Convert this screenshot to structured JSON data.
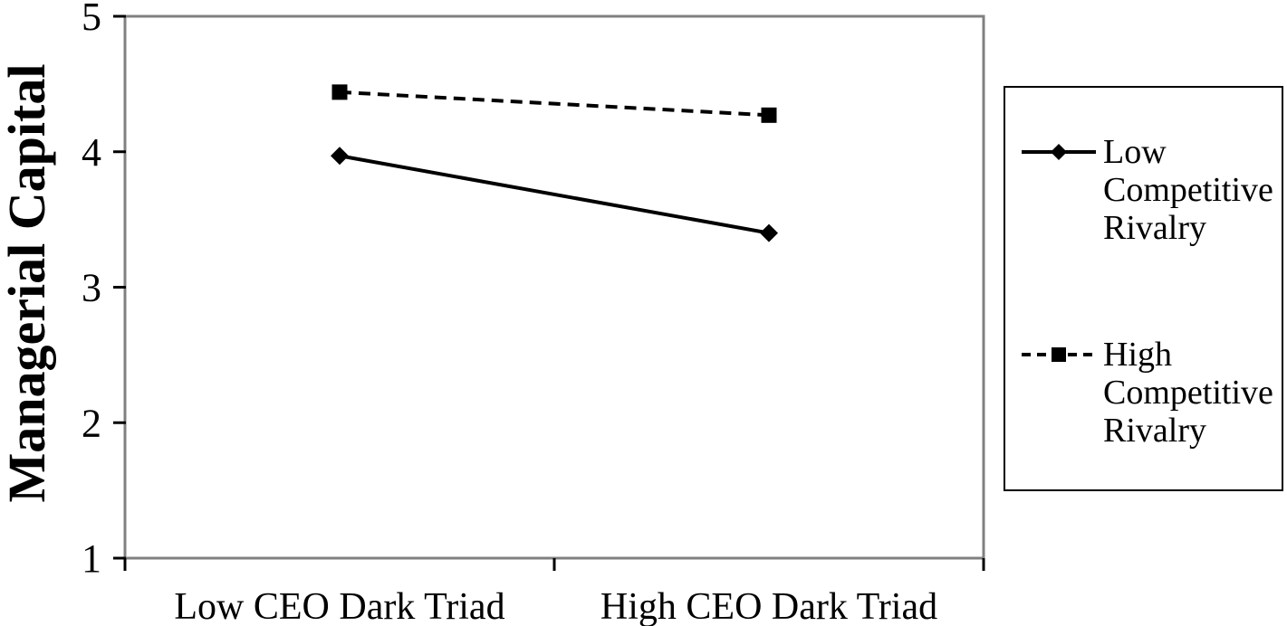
{
  "colors": {
    "line": "#000000",
    "text": "#000000",
    "plot_border": "#808080",
    "background": "#ffffff"
  },
  "chart_data": {
    "type": "line",
    "title": "",
    "ylabel": "Managerial Capital",
    "xlabel": "",
    "categories": [
      "Low CEO Dark Triad",
      "High CEO Dark Triad"
    ],
    "ylim": [
      1,
      5
    ],
    "yticks": [
      1,
      2,
      3,
      4,
      5
    ],
    "grid": false,
    "legend_position": "right",
    "series": [
      {
        "name": "Low Competitive Rivalry",
        "marker": "diamond",
        "line_style": "solid",
        "values": [
          3.97,
          3.4
        ]
      },
      {
        "name": "High Competitive Rivalry",
        "marker": "square",
        "line_style": "dashed",
        "values": [
          4.44,
          4.27
        ]
      }
    ]
  }
}
